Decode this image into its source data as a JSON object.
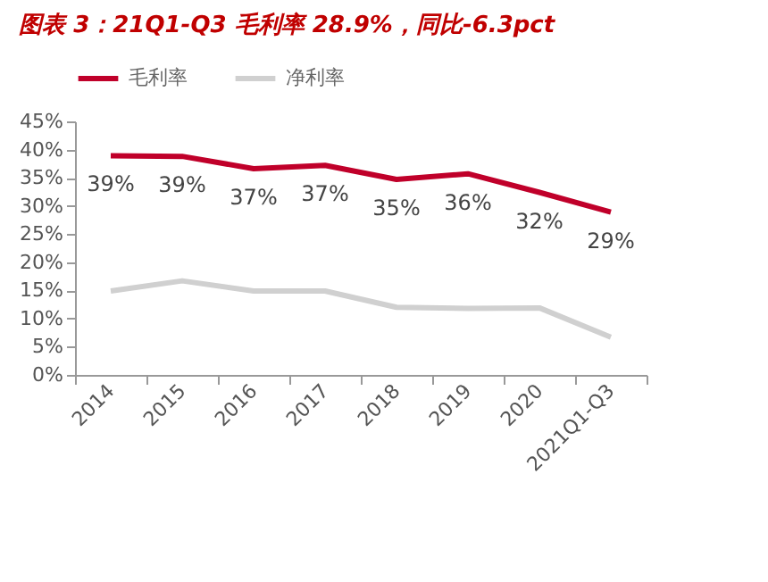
{
  "chart_data": {
    "type": "line",
    "title": "图表 3：21Q1-Q3 毛利率 28.9%，同比-6.3pct",
    "categories": [
      "2014",
      "2015",
      "2016",
      "2017",
      "2018",
      "2019",
      "2020",
      "2021Q1-Q3"
    ],
    "series": [
      {
        "name": "毛利率",
        "color": "#c0002a",
        "values": [
          38.9,
          38.8,
          36.6,
          37.2,
          34.7,
          35.7,
          32.4,
          28.9
        ],
        "value_labels": [
          "39%",
          "39%",
          "37%",
          "37%",
          "35%",
          "36%",
          "32%",
          "29%"
        ]
      },
      {
        "name": "净利率",
        "color": "#d0d0d0",
        "values": [
          14.9,
          16.7,
          14.9,
          14.9,
          12.0,
          11.8,
          11.9,
          6.7
        ]
      }
    ],
    "ylim": [
      0,
      45
    ],
    "yticks": [
      {
        "value": 0,
        "label": "0%"
      },
      {
        "value": 5,
        "label": "5%"
      },
      {
        "value": 10,
        "label": "10%"
      },
      {
        "value": 15,
        "label": "15%"
      },
      {
        "value": 20,
        "label": "20%"
      },
      {
        "value": 25,
        "label": "25%"
      },
      {
        "value": 30,
        "label": "30%"
      },
      {
        "value": 35,
        "label": "35%"
      },
      {
        "value": 40,
        "label": "40%"
      },
      {
        "value": 45,
        "label": "45%"
      }
    ],
    "grid": false,
    "legend": "top",
    "marker": "none",
    "line_style": "solid"
  }
}
